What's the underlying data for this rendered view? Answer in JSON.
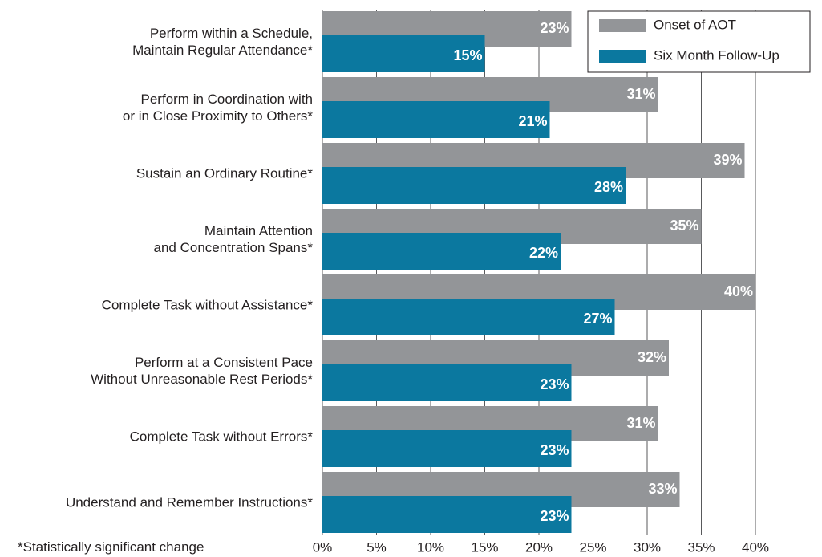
{
  "chart_data": {
    "type": "barh",
    "categories": [
      "Perform within a Schedule,\nMaintain Regular Attendance*",
      "Perform in Coordination with\nor in Close Proximity to Others*",
      "Sustain an Ordinary Routine*",
      "Maintain Attention\nand Concentration Spans*",
      "Complete Task without Assistance*",
      "Perform at a Consistent Pace\nWithout Unreasonable Rest Periods*",
      "Complete Task without Errors*",
      "Understand and Remember Instructions*"
    ],
    "series": [
      {
        "name": "Onset of AOT",
        "color": "#939598",
        "values": [
          23,
          31,
          39,
          35,
          40,
          32,
          31,
          33
        ],
        "value_labels": [
          "23%",
          "31%",
          "39%",
          "35%",
          "40%",
          "32%",
          "31%",
          "33%"
        ]
      },
      {
        "name": "Six Month Follow-Up",
        "color": "#0b789f",
        "values": [
          15,
          21,
          28,
          22,
          27,
          23,
          23,
          23
        ],
        "value_labels": [
          "15%",
          "21%",
          "28%",
          "22%",
          "27%",
          "23%",
          "23%",
          "23%"
        ]
      }
    ],
    "xlim": [
      0,
      40
    ],
    "xticks": [
      {
        "value": 0,
        "label": "0%"
      },
      {
        "value": 5,
        "label": "5%"
      },
      {
        "value": 10,
        "label": "10%"
      },
      {
        "value": 15,
        "label": "15%"
      },
      {
        "value": 20,
        "label": "20%"
      },
      {
        "value": 25,
        "label": "25%"
      },
      {
        "value": 30,
        "label": "30%"
      },
      {
        "value": 35,
        "label": "35%"
      },
      {
        "value": 40,
        "label": "40%"
      }
    ],
    "grid": true,
    "legend": "top-right",
    "footnote": "*Statistically significant change"
  }
}
